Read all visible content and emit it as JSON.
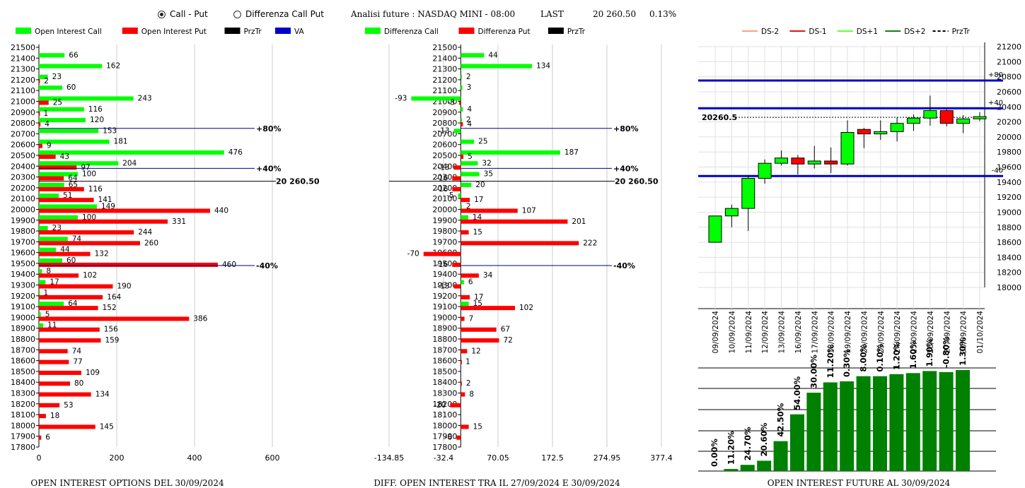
{
  "controls": {
    "radio_call_put": "Call - Put",
    "radio_diff": "Differenza Call Put",
    "selected": "call_put"
  },
  "header": {
    "title": "Analisi future : NASDAQ MINI - 08:00",
    "last_label": "LAST",
    "last_value": "20 260.50",
    "change": "0.13%"
  },
  "colors": {
    "green": "#00ff00",
    "red": "#ff0000",
    "black": "#000000",
    "blue": "#0000cc",
    "dark_green": "#008000",
    "ds_minus2": "#f4a582",
    "ds_minus1": "#d7191c",
    "ds_plus1": "#66ff33",
    "ds_plus2": "#1a7f1a"
  },
  "chart_data": [
    {
      "type": "bar",
      "title": "OPEN INTEREST OPTIONS DEL 30/09/2024",
      "legend": [
        "Open Interest Call",
        "Open Interest Put",
        "PrzTr",
        "VA"
      ],
      "categories": [
        "21500",
        "21400",
        "21300",
        "21200",
        "21100",
        "21000",
        "20900",
        "20800",
        "20700",
        "20600",
        "20500",
        "20400",
        "20300",
        "20200",
        "20100",
        "20000",
        "19900",
        "19800",
        "19700",
        "19600",
        "19500",
        "19400",
        "19300",
        "19200",
        "19100",
        "19000",
        "18900",
        "18800",
        "18700",
        "18600",
        "18500",
        "18400",
        "18300",
        "18200",
        "18100",
        "18000",
        "17900",
        "17800"
      ],
      "series": [
        {
          "name": "Open Interest Call",
          "values": [
            0,
            66,
            162,
            23,
            60,
            243,
            116,
            120,
            153,
            181,
            476,
            204,
            100,
            65,
            51,
            149,
            100,
            23,
            74,
            44,
            60,
            8,
            17,
            1,
            64,
            5,
            11,
            0,
            0,
            0,
            0,
            0,
            0,
            0,
            0,
            0,
            0,
            0
          ]
        },
        {
          "name": "Open Interest Put",
          "values": [
            0,
            0,
            0,
            2,
            0,
            25,
            1,
            4,
            0,
            9,
            43,
            97,
            64,
            116,
            141,
            440,
            331,
            244,
            260,
            132,
            460,
            102,
            190,
            164,
            152,
            386,
            156,
            159,
            74,
            77,
            109,
            80,
            134,
            53,
            18,
            145,
            6,
            0
          ]
        }
      ],
      "xlim": [
        0,
        600
      ],
      "xticks": [
        "0",
        "200",
        "400",
        "600"
      ],
      "price_line": {
        "label": "20 260.50",
        "value": 20260.5
      },
      "va_lines": [
        {
          "label": "+80%",
          "value": 20750
        },
        {
          "label": "+40%",
          "value": 20380
        },
        {
          "label": "-40%",
          "value": 19480
        }
      ]
    },
    {
      "type": "bar",
      "title": "DIFF. OPEN INTEREST TRA IL 27/09/2024 E 30/09/2024",
      "legend": [
        "Differenza Call",
        "Differenza Put",
        "PrzTr"
      ],
      "categories": [
        "21500",
        "21400",
        "21300",
        "21200",
        "21100",
        "21000",
        "20900",
        "20800",
        "20700",
        "20600",
        "20500",
        "20400",
        "20300",
        "20200",
        "20100",
        "20000",
        "19900",
        "19800",
        "19700",
        "19600",
        "19500",
        "19400",
        "19300",
        "19200",
        "19100",
        "19000",
        "18900",
        "18800",
        "18700",
        "18600",
        "18500",
        "18400",
        "18300",
        "18200",
        "18100",
        "18000",
        "17900",
        "17800"
      ],
      "series": [
        {
          "name": "Differenza Call",
          "values": [
            0,
            44,
            134,
            2,
            3,
            -93,
            4,
            2,
            -13,
            25,
            187,
            32,
            35,
            20,
            -5,
            2,
            14,
            0,
            0,
            0,
            0,
            0,
            6,
            0,
            15,
            0,
            0,
            0,
            0,
            0,
            0,
            0,
            0,
            0,
            0,
            0,
            0,
            0
          ]
        },
        {
          "name": "Differenza Put",
          "values": [
            0,
            0,
            0,
            0,
            0,
            -3,
            0,
            4,
            0,
            0,
            5,
            -13,
            -16,
            -16,
            17,
            107,
            201,
            15,
            222,
            -70,
            -16,
            34,
            -13,
            17,
            102,
            7,
            67,
            72,
            12,
            1,
            0,
            2,
            8,
            -20,
            0,
            15,
            -8,
            0
          ]
        }
      ],
      "xlim": [
        -134.85,
        377.4
      ],
      "xticks": [
        "-134.85",
        "-32.4",
        "70.05",
        "172.5",
        "274.95",
        "377.4"
      ],
      "price_line": {
        "label": "20 260.50",
        "value": 20260.5
      },
      "va_lines": [
        {
          "label": "+80%",
          "value": 20750
        },
        {
          "label": "+40%",
          "value": 20380
        },
        {
          "label": "-40%",
          "value": 19480
        }
      ]
    },
    {
      "type": "candlestick",
      "legend": [
        "DS-2",
        "DS-1",
        "DS+1",
        "DS+2",
        "PrzTr"
      ],
      "dates": [
        "09/09/2024",
        "10/09/2024",
        "11/09/2024",
        "12/09/2024",
        "13/09/2024",
        "16/09/2024",
        "17/09/2024",
        "18/09/2024",
        "19/09/2024",
        "20/09/2024",
        "23/09/2024",
        "24/09/2024",
        "25/09/2024",
        "26/09/2024",
        "27/09/2024",
        "30/09/2024",
        "01/10/2024"
      ],
      "ohlc": [
        [
          18600,
          18950,
          18600,
          18950
        ],
        [
          18950,
          19100,
          18800,
          19050
        ],
        [
          19050,
          19480,
          18750,
          19450
        ],
        [
          19450,
          19700,
          19380,
          19650
        ],
        [
          19650,
          19820,
          19620,
          19720
        ],
        [
          19720,
          19760,
          19500,
          19640
        ],
        [
          19640,
          19880,
          19580,
          19680
        ],
        [
          19680,
          19860,
          19520,
          19640
        ],
        [
          19640,
          20220,
          19620,
          20060
        ],
        [
          20100,
          20120,
          19850,
          20040
        ],
        [
          20040,
          20220,
          19960,
          20070
        ],
        [
          20070,
          20260,
          19940,
          20180
        ],
        [
          20180,
          20300,
          20080,
          20250
        ],
        [
          20250,
          20550,
          20150,
          20350
        ],
        [
          20350,
          20370,
          20140,
          20180
        ],
        [
          20180,
          20290,
          20050,
          20240
        ],
        [
          20240,
          20330,
          20210,
          20270
        ]
      ],
      "ylim": [
        18000,
        21200
      ],
      "yticks": [
        "21200",
        "21000",
        "20800",
        "20600",
        "20400",
        "20200",
        "20000",
        "19800",
        "19600",
        "19400",
        "19200",
        "19000",
        "18800",
        "18600",
        "18400",
        "18200",
        "18000"
      ],
      "price_label": "20260.5",
      "levels": [
        {
          "label": "+80",
          "value": 20750
        },
        {
          "label": "+40",
          "value": 20380
        },
        {
          "label": "-40",
          "value": 19480
        }
      ]
    },
    {
      "type": "bar",
      "title": "OPEN INTEREST FUTURE AL 30/09/2024",
      "labels": [
        "0.00%",
        "11.20%",
        "24.70%",
        "20.60%",
        "42.50%",
        "54.00%",
        "30.00%",
        "11.20%",
        "0.30%",
        "8.00%",
        "0.10%",
        "1.20%",
        "1.60%",
        "1.90%",
        "-0.80%",
        "1.30%"
      ],
      "values": [
        0,
        2,
        6,
        10,
        29,
        55,
        76,
        86,
        87,
        92,
        92,
        94,
        95,
        97,
        96,
        98
      ]
    }
  ]
}
